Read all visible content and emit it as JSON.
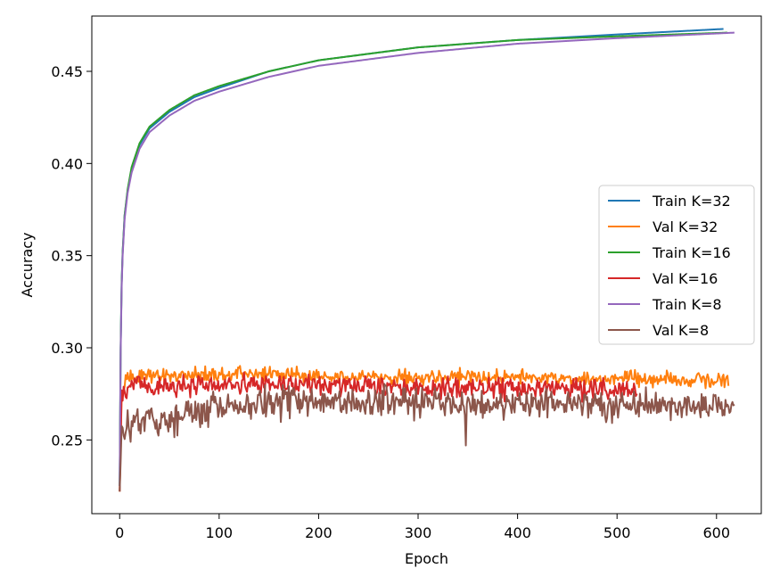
{
  "chart_data": {
    "type": "line",
    "title": "",
    "xlabel": "Epoch",
    "ylabel": "Accuracy",
    "xlim": [
      -28,
      645
    ],
    "ylim": [
      0.21,
      0.48
    ],
    "xticks": [
      0,
      100,
      200,
      300,
      400,
      500,
      600
    ],
    "yticks": [
      0.25,
      0.3,
      0.35,
      0.4,
      0.45
    ],
    "ytick_labels": [
      "0.25",
      "0.30",
      "0.35",
      "0.40",
      "0.45"
    ],
    "grid": false,
    "legend": {
      "placement": "center-right"
    },
    "series": [
      {
        "name": "Train K=32",
        "color": "#1f77b4",
        "kind": "train",
        "last_epoch": 607,
        "x": [
          0,
          1,
          2,
          3,
          5,
          8,
          12,
          20,
          30,
          50,
          75,
          100,
          150,
          200,
          300,
          400,
          500,
          607
        ],
        "values": [
          0.225,
          0.3,
          0.335,
          0.352,
          0.372,
          0.385,
          0.397,
          0.41,
          0.419,
          0.428,
          0.436,
          0.441,
          0.45,
          0.456,
          0.463,
          0.467,
          0.47,
          0.473
        ]
      },
      {
        "name": "Val K=32",
        "color": "#ff7f0e",
        "kind": "val",
        "last_epoch": 612,
        "x": [
          0,
          2,
          5,
          10,
          20,
          50,
          100,
          200,
          300,
          400,
          500,
          612
        ],
        "values": [
          0.222,
          0.272,
          0.28,
          0.284,
          0.285,
          0.285,
          0.286,
          0.285,
          0.284,
          0.284,
          0.283,
          0.282
        ]
      },
      {
        "name": "Train K=16",
        "color": "#2ca02c",
        "kind": "train",
        "last_epoch": 611,
        "x": [
          0,
          1,
          2,
          3,
          5,
          8,
          12,
          20,
          30,
          50,
          75,
          100,
          150,
          200,
          300,
          400,
          500,
          611
        ],
        "values": [
          0.225,
          0.3,
          0.335,
          0.352,
          0.372,
          0.386,
          0.398,
          0.411,
          0.42,
          0.429,
          0.437,
          0.442,
          0.45,
          0.456,
          0.463,
          0.467,
          0.469,
          0.471
        ]
      },
      {
        "name": "Val K=16",
        "color": "#d62728",
        "kind": "val",
        "last_epoch": 520,
        "x": [
          0,
          2,
          5,
          10,
          20,
          50,
          100,
          200,
          300,
          400,
          520
        ],
        "values": [
          0.222,
          0.272,
          0.277,
          0.28,
          0.28,
          0.279,
          0.28,
          0.28,
          0.279,
          0.278,
          0.278
        ]
      },
      {
        "name": "Train K=8",
        "color": "#9467bd",
        "kind": "train",
        "last_epoch": 618,
        "x": [
          0,
          1,
          2,
          3,
          5,
          8,
          12,
          20,
          30,
          50,
          75,
          100,
          150,
          200,
          300,
          400,
          500,
          618
        ],
        "values": [
          0.225,
          0.298,
          0.333,
          0.35,
          0.37,
          0.384,
          0.395,
          0.408,
          0.417,
          0.426,
          0.434,
          0.439,
          0.447,
          0.453,
          0.46,
          0.465,
          0.468,
          0.471
        ]
      },
      {
        "name": "Val K=8",
        "color": "#8c564b",
        "kind": "val",
        "last_epoch": 618,
        "x": [
          0,
          2,
          5,
          10,
          20,
          50,
          100,
          150,
          200,
          300,
          350,
          400,
          500,
          618
        ],
        "values": [
          0.222,
          0.255,
          0.258,
          0.259,
          0.261,
          0.262,
          0.268,
          0.27,
          0.271,
          0.271,
          0.268,
          0.27,
          0.269,
          0.268
        ]
      }
    ]
  }
}
